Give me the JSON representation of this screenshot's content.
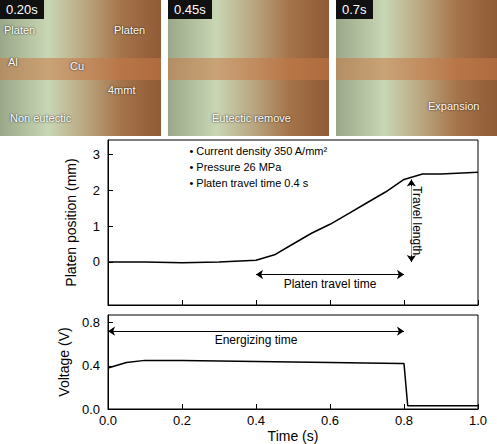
{
  "photos": [
    {
      "time": "0.20s",
      "labels": [
        "Platen",
        "Platen",
        "Al",
        "Cu",
        "4mmt",
        "Non eutectic"
      ]
    },
    {
      "time": "0.45s",
      "labels": [
        "Eutectic remove"
      ]
    },
    {
      "time": "0.7s",
      "labels": [
        "Expansion"
      ]
    }
  ],
  "chart_data": [
    {
      "type": "line",
      "y_label": "Platen position (mm)",
      "x": [
        0,
        0.1,
        0.2,
        0.3,
        0.4,
        0.45,
        0.5,
        0.55,
        0.6,
        0.65,
        0.7,
        0.75,
        0.8,
        0.85,
        0.9,
        1.0
      ],
      "values": [
        0,
        0,
        -0.02,
        0,
        0.05,
        0.2,
        0.5,
        0.8,
        1.05,
        1.35,
        1.65,
        1.95,
        2.3,
        2.45,
        2.45,
        2.5
      ],
      "color": "#000000",
      "xlim": [
        0,
        1
      ],
      "xticks": [
        0,
        0.2,
        0.4,
        0.6,
        0.8,
        1.0
      ],
      "ylim": [
        -1.2,
        3.4
      ],
      "yticks": [
        0,
        1,
        2,
        3
      ],
      "tick_labels": "y",
      "grid": false,
      "annotations": [
        {
          "text": "• Current density 350 A/mm²",
          "x": 0.22,
          "y": 3.1
        },
        {
          "text": "• Pressure 26 MPa",
          "x": 0.22,
          "y": 2.65
        },
        {
          "text": "• Platen travel time 0.4 s",
          "x": 0.22,
          "y": 2.2
        }
      ],
      "arrows": [
        {
          "label": "Travel length",
          "x": [
            0.82,
            0.82
          ],
          "y": [
            0,
            2.3
          ]
        },
        {
          "label": "Platen travel time",
          "x": [
            0.4,
            0.8
          ],
          "y": [
            -0.35,
            -0.35
          ]
        }
      ]
    },
    {
      "type": "line",
      "y_label": "Voltage (V)",
      "x_label": "Time (s)",
      "x": [
        0,
        0.05,
        0.1,
        0.2,
        0.4,
        0.6,
        0.79,
        0.8,
        0.81,
        0.9,
        1.0
      ],
      "values": [
        0.38,
        0.43,
        0.45,
        0.45,
        0.44,
        0.43,
        0.42,
        0.42,
        0.03,
        0.03,
        0.03
      ],
      "color": "#000000",
      "xlim": [
        0,
        1
      ],
      "xticks": [
        {
          "value": 0,
          "label": "0.0"
        },
        {
          "value": 0.2,
          "label": "0.2"
        },
        {
          "value": 0.4,
          "label": "0.4"
        },
        {
          "value": 0.6,
          "label": "0.6"
        },
        {
          "value": 0.8,
          "label": "0.8"
        },
        {
          "value": 1.0,
          "label": "1.0"
        }
      ],
      "ylim": [
        0,
        0.87
      ],
      "yticks": [
        {
          "value": 0,
          "label": "0.0"
        },
        {
          "value": 0.4,
          "label": "0.4"
        },
        {
          "value": 0.8,
          "label": "0.8"
        }
      ],
      "grid": false,
      "arrows": [
        {
          "label": "Energizing time",
          "x": [
            0,
            0.8
          ],
          "y": [
            0.72,
            0.72
          ]
        }
      ]
    }
  ]
}
